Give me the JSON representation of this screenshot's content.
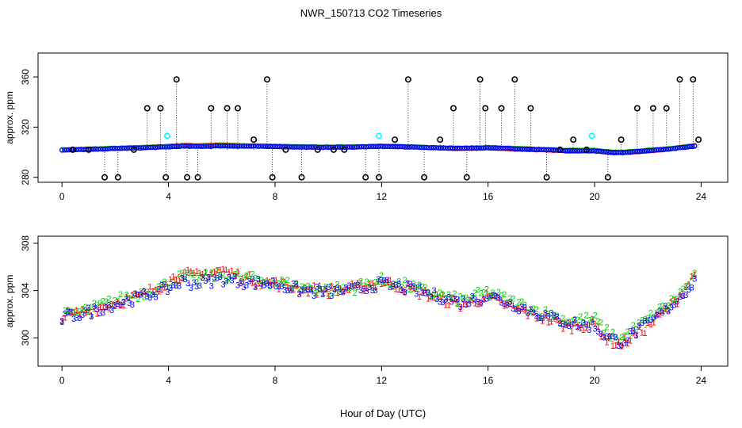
{
  "title": "NWR_150713  CO2 Timeseries",
  "xlabel": "Hour of Day (UTC)",
  "colors": {
    "series1": "#ff0000",
    "series2": "#00cc00",
    "series3": "#0000ff",
    "flagged": "#000000",
    "cyan": "#00ffff"
  },
  "chart_data": [
    {
      "type": "scatter",
      "name": "all-data",
      "ylabel": "approx. ppm",
      "xlabel": "",
      "xlim": [
        -0.9,
        25.0
      ],
      "ylim": [
        276,
        379
      ],
      "xticks": [
        0,
        4,
        8,
        12,
        16,
        20,
        24
      ],
      "yticks": [
        280,
        320,
        360
      ],
      "xtick_labels": [
        "0",
        "4",
        "8",
        "12",
        "16",
        "20",
        24
      ],
      "ytick_labels": [
        "280",
        "320",
        "360"
      ],
      "flag_levels": [
        280,
        302,
        310,
        335,
        358
      ],
      "series": [
        {
          "name": "1",
          "color": "#ff0000",
          "marker": "1",
          "x": [
            0,
            1,
            2,
            3,
            4,
            4.5,
            5,
            6,
            7,
            8,
            9,
            10,
            11,
            12,
            13,
            14,
            15,
            16,
            17,
            18,
            19,
            20,
            20.5,
            21,
            22,
            23,
            23.8
          ],
          "values": [
            301.8,
            302.3,
            303.0,
            303.6,
            304.8,
            305.5,
            305.2,
            305.8,
            305.0,
            304.6,
            304.2,
            304.0,
            304.2,
            304.8,
            304.2,
            303.5,
            302.8,
            303.5,
            302.5,
            301.8,
            301.0,
            301.2,
            299.8,
            299.5,
            301.0,
            303.0,
            305.5
          ]
        },
        {
          "name": "2",
          "color": "#00cc00",
          "marker": "2",
          "x": [
            0,
            1,
            2,
            3,
            4,
            4.5,
            5,
            6,
            7,
            8,
            9,
            10,
            11,
            12,
            13,
            14,
            15,
            16,
            17,
            18,
            19,
            20,
            20.5,
            21,
            22,
            23,
            23.8
          ],
          "values": [
            301.9,
            302.4,
            303.2,
            303.8,
            304.6,
            305.2,
            305.0,
            305.4,
            305.0,
            304.8,
            304.3,
            304.1,
            304.3,
            304.9,
            304.4,
            303.7,
            303.2,
            303.9,
            303.0,
            302.2,
            301.5,
            301.6,
            300.4,
            300.0,
            301.6,
            303.3,
            305.2
          ]
        },
        {
          "name": "3",
          "color": "#0000ff",
          "marker": "3",
          "x": [
            0,
            1,
            2,
            3,
            4,
            4.5,
            5,
            6,
            7,
            8,
            9,
            10,
            11,
            12,
            13,
            14,
            15,
            16,
            17,
            18,
            19,
            20,
            20.5,
            21,
            22,
            23,
            23.8
          ],
          "values": [
            301.7,
            302.2,
            302.9,
            303.5,
            304.2,
            304.8,
            304.6,
            305.0,
            304.7,
            304.6,
            304.0,
            303.9,
            304.1,
            304.6,
            304.2,
            303.6,
            303.0,
            303.6,
            302.8,
            302.0,
            301.3,
            301.0,
            300.0,
            299.7,
            301.2,
            303.0,
            304.9
          ]
        }
      ]
    },
    {
      "type": "scatter",
      "name": "zoomed",
      "ylabel": "approx. ppm",
      "xlabel": "Hour of Day (UTC)",
      "xlim": [
        -0.9,
        25.0
      ],
      "ylim": [
        297.6,
        308.6
      ],
      "xticks": [
        0,
        4,
        8,
        12,
        16,
        20,
        24
      ],
      "yticks": [
        300,
        304,
        308
      ],
      "xtick_labels": [
        "0",
        "4",
        "8",
        "12",
        "16",
        "20",
        "24"
      ],
      "ytick_labels": [
        "300",
        "304",
        "308"
      ],
      "series": [
        {
          "name": "1",
          "color": "#ff0000",
          "marker": "1",
          "x": [
            0,
            1,
            2,
            3,
            4,
            4.5,
            5,
            6,
            7,
            8,
            9,
            10,
            11,
            12,
            13,
            14,
            15,
            16,
            17,
            18,
            19,
            20,
            20.5,
            21,
            22,
            23,
            23.8
          ],
          "values": [
            301.8,
            302.3,
            303.0,
            303.6,
            304.8,
            305.5,
            305.2,
            305.8,
            305.0,
            304.6,
            304.2,
            304.0,
            304.2,
            304.8,
            304.2,
            303.5,
            302.8,
            303.5,
            302.5,
            301.8,
            301.0,
            301.2,
            299.8,
            299.5,
            301.0,
            303.0,
            305.5
          ]
        },
        {
          "name": "2",
          "color": "#00cc00",
          "marker": "2",
          "x": [
            0,
            1,
            2,
            3,
            4,
            4.5,
            5,
            6,
            7,
            8,
            9,
            10,
            11,
            12,
            13,
            14,
            15,
            16,
            17,
            18,
            19,
            20,
            20.5,
            21,
            22,
            23,
            23.8
          ],
          "values": [
            301.9,
            302.4,
            303.2,
            303.8,
            304.6,
            305.2,
            305.0,
            305.4,
            305.0,
            304.8,
            304.3,
            304.1,
            304.3,
            304.9,
            304.4,
            303.7,
            303.2,
            303.9,
            303.0,
            302.2,
            301.5,
            301.6,
            300.4,
            300.0,
            301.6,
            303.3,
            305.2
          ]
        },
        {
          "name": "3",
          "color": "#0000ff",
          "marker": "3",
          "x": [
            0,
            1,
            2,
            3,
            4,
            4.5,
            5,
            6,
            7,
            8,
            9,
            10,
            11,
            12,
            13,
            14,
            15,
            16,
            17,
            18,
            19,
            20,
            20.5,
            21,
            22,
            23,
            23.8
          ],
          "values": [
            301.7,
            302.2,
            302.9,
            303.5,
            304.2,
            304.8,
            304.6,
            305.0,
            304.7,
            304.6,
            304.0,
            303.9,
            304.1,
            304.6,
            304.2,
            303.6,
            303.0,
            303.6,
            302.8,
            302.0,
            301.3,
            301.0,
            300.0,
            299.7,
            301.2,
            303.0,
            304.9
          ]
        }
      ]
    }
  ]
}
